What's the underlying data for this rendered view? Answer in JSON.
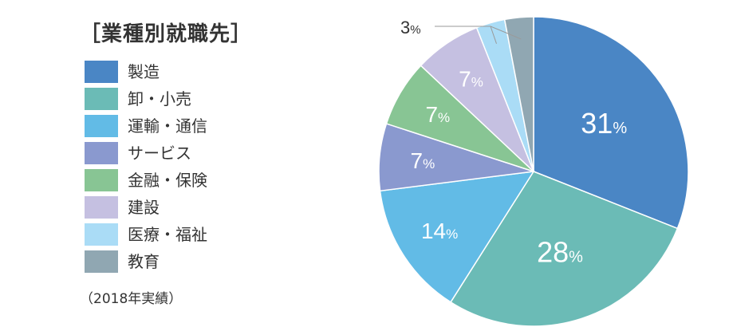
{
  "legend": {
    "title": "［業種別就職先］",
    "footnote": "（2018年実績）"
  },
  "chart_data": {
    "type": "pie",
    "title": "［業種別就職先］",
    "note": "（2018年実績）",
    "unit": "%",
    "slices": [
      {
        "label": "製造",
        "value": 31,
        "display": "31",
        "color": "#4a86c5"
      },
      {
        "label": "卸・小売",
        "value": 28,
        "display": "28",
        "color": "#6bbbb6"
      },
      {
        "label": "運輸・通信",
        "value": 14,
        "display": "14",
        "color": "#62bbe6"
      },
      {
        "label": "サービス",
        "value": 7,
        "display": "7",
        "color": "#8a99cf"
      },
      {
        "label": "金融・保険",
        "value": 7,
        "display": "7",
        "color": "#88c594"
      },
      {
        "label": "建設",
        "value": 7,
        "display": "7",
        "color": "#c5c0e1"
      },
      {
        "label": "医療・福祉",
        "value": 3,
        "display": "",
        "color": "#aadcf6"
      },
      {
        "label": "教育",
        "value": 3,
        "display": "3",
        "color": "#90a7b2"
      }
    ]
  }
}
